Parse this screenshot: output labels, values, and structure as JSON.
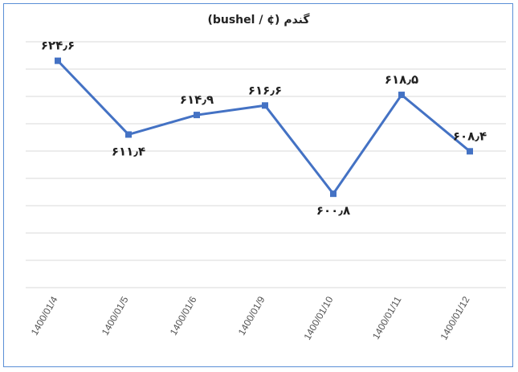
{
  "chart_data": {
    "type": "line",
    "title": "گندم (¢ / bushel)",
    "categories": [
      "1400/01/4",
      "1400/01/5",
      "1400/01/6",
      "1400/01/9",
      "1400/01/10",
      "1400/01/11",
      "1400/01/12"
    ],
    "series": [
      {
        "values": [
          624.6,
          611.4,
          614.9,
          616.6,
          600.8,
          618.5,
          608.4
        ],
        "labels": [
          "۶۲۴٫۶",
          "۶۱۱٫۴",
          "۶۱۴٫۹",
          "۶۱۶٫۶",
          "۶۰۰٫۸",
          "۶۱۸٫۵",
          "۶۰۸٫۴"
        ],
        "color": "#4472c4"
      }
    ],
    "ylim": [
      584,
      628
    ],
    "grid": true,
    "legend": "none"
  }
}
